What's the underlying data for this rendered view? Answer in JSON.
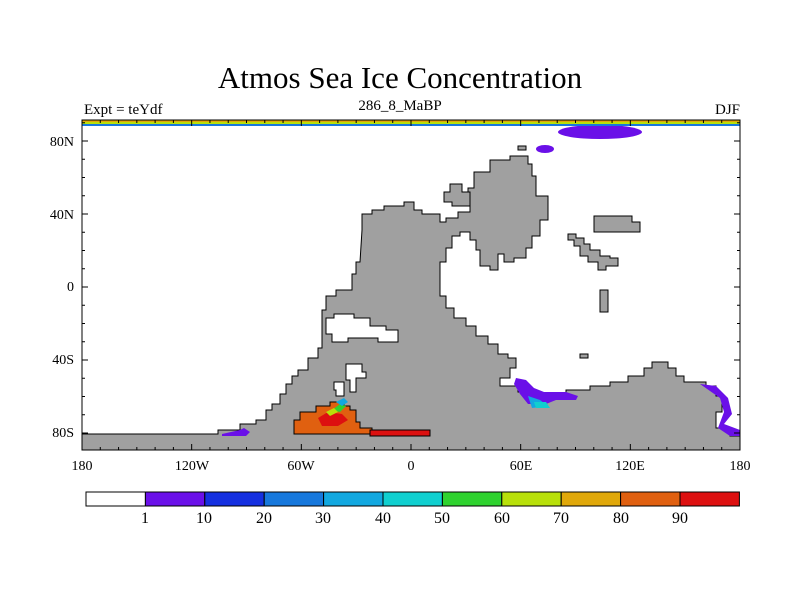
{
  "title": "Atmos Sea Ice Concentration",
  "subtitle_left": "Expt = teYdf",
  "subtitle_center": "286_8_MaBP",
  "subtitle_right": "DJF",
  "lat_ticks": [
    "80N",
    "40N",
    "0",
    "40S",
    "80S"
  ],
  "lon_ticks": [
    "180",
    "120W",
    "60W",
    "0",
    "60E",
    "120E",
    "180"
  ],
  "colorbar": {
    "labels": [
      "1",
      "10",
      "20",
      "30",
      "40",
      "50",
      "60",
      "70",
      "80",
      "90"
    ],
    "colors": [
      "#ffffff",
      "#6a10e8",
      "#1530e0",
      "#1778dc",
      "#12a8e0",
      "#10cfcf",
      "#2fd22f",
      "#b8e00a",
      "#e0a80a",
      "#e06010",
      "#dd1010"
    ]
  },
  "colors": {
    "land": "#a0a0a0",
    "ocean": "#ffffff",
    "ice_violet": "#6a10e8",
    "ice_red": "#dd1010",
    "ice_orange": "#e06010"
  }
}
